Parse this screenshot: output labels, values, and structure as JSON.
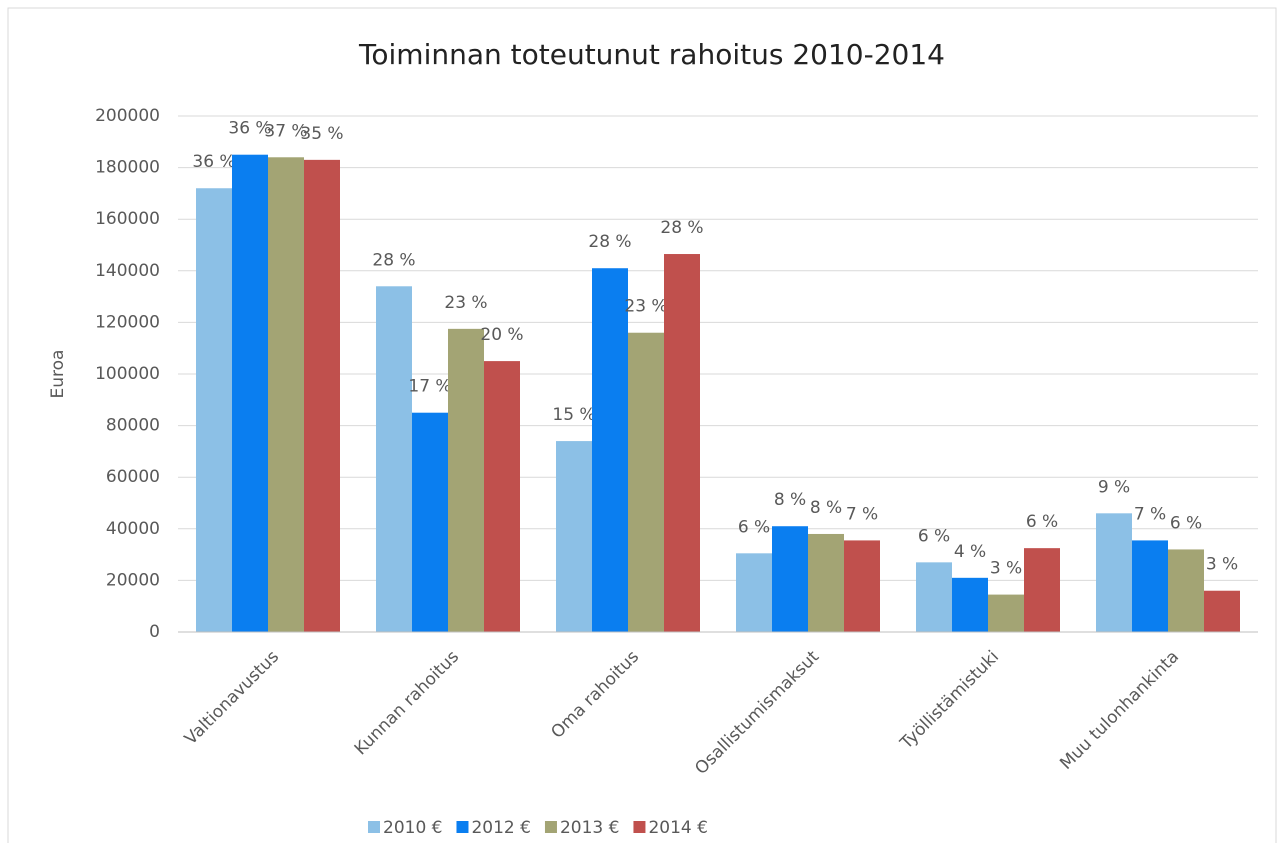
{
  "chart_data": {
    "type": "bar",
    "title": "Toiminnan toteutunut rahoitus 2010-2014",
    "y_label": "Euroa",
    "categories": [
      "Valtionavustus",
      "Kunnan rahoitus",
      "Oma rahoitus",
      "Osallistumismaksut",
      "Työllistämistuki",
      "Muu tulonhankinta"
    ],
    "series": [
      {
        "name": "2010 €",
        "color": "#8cc0e6",
        "values": [
          172000,
          134000,
          74000,
          30500,
          27000,
          46000
        ],
        "data_labels": [
          "36 %",
          "28 %",
          "15 %",
          "6 %",
          "6 %",
          "9 %"
        ]
      },
      {
        "name": "2012 €",
        "color": "#0a7ef0",
        "values": [
          185000,
          85000,
          141000,
          41000,
          21000,
          35500
        ],
        "data_labels": [
          "36 %",
          "17 %",
          "28 %",
          "8 %",
          "4 %",
          "7 %"
        ]
      },
      {
        "name": "2013 €",
        "color": "#a3a474",
        "values": [
          184000,
          117500,
          116000,
          38000,
          14500,
          32000
        ],
        "data_labels": [
          "37 %",
          "23 %",
          "23 %",
          "8 %",
          "3 %",
          "6 %"
        ]
      },
      {
        "name": "2014 €",
        "color": "#c0504d",
        "values": [
          183000,
          105000,
          146500,
          35500,
          32500,
          16000
        ],
        "data_labels": [
          "35 %",
          "20 %",
          "28 %",
          "7 %",
          "6 %",
          "3 %"
        ]
      }
    ],
    "ylim": [
      0,
      200000
    ],
    "yticks": [
      0,
      20000,
      40000,
      60000,
      80000,
      100000,
      120000,
      140000,
      160000,
      180000,
      200000
    ],
    "grid": true,
    "legend": "bottom"
  }
}
